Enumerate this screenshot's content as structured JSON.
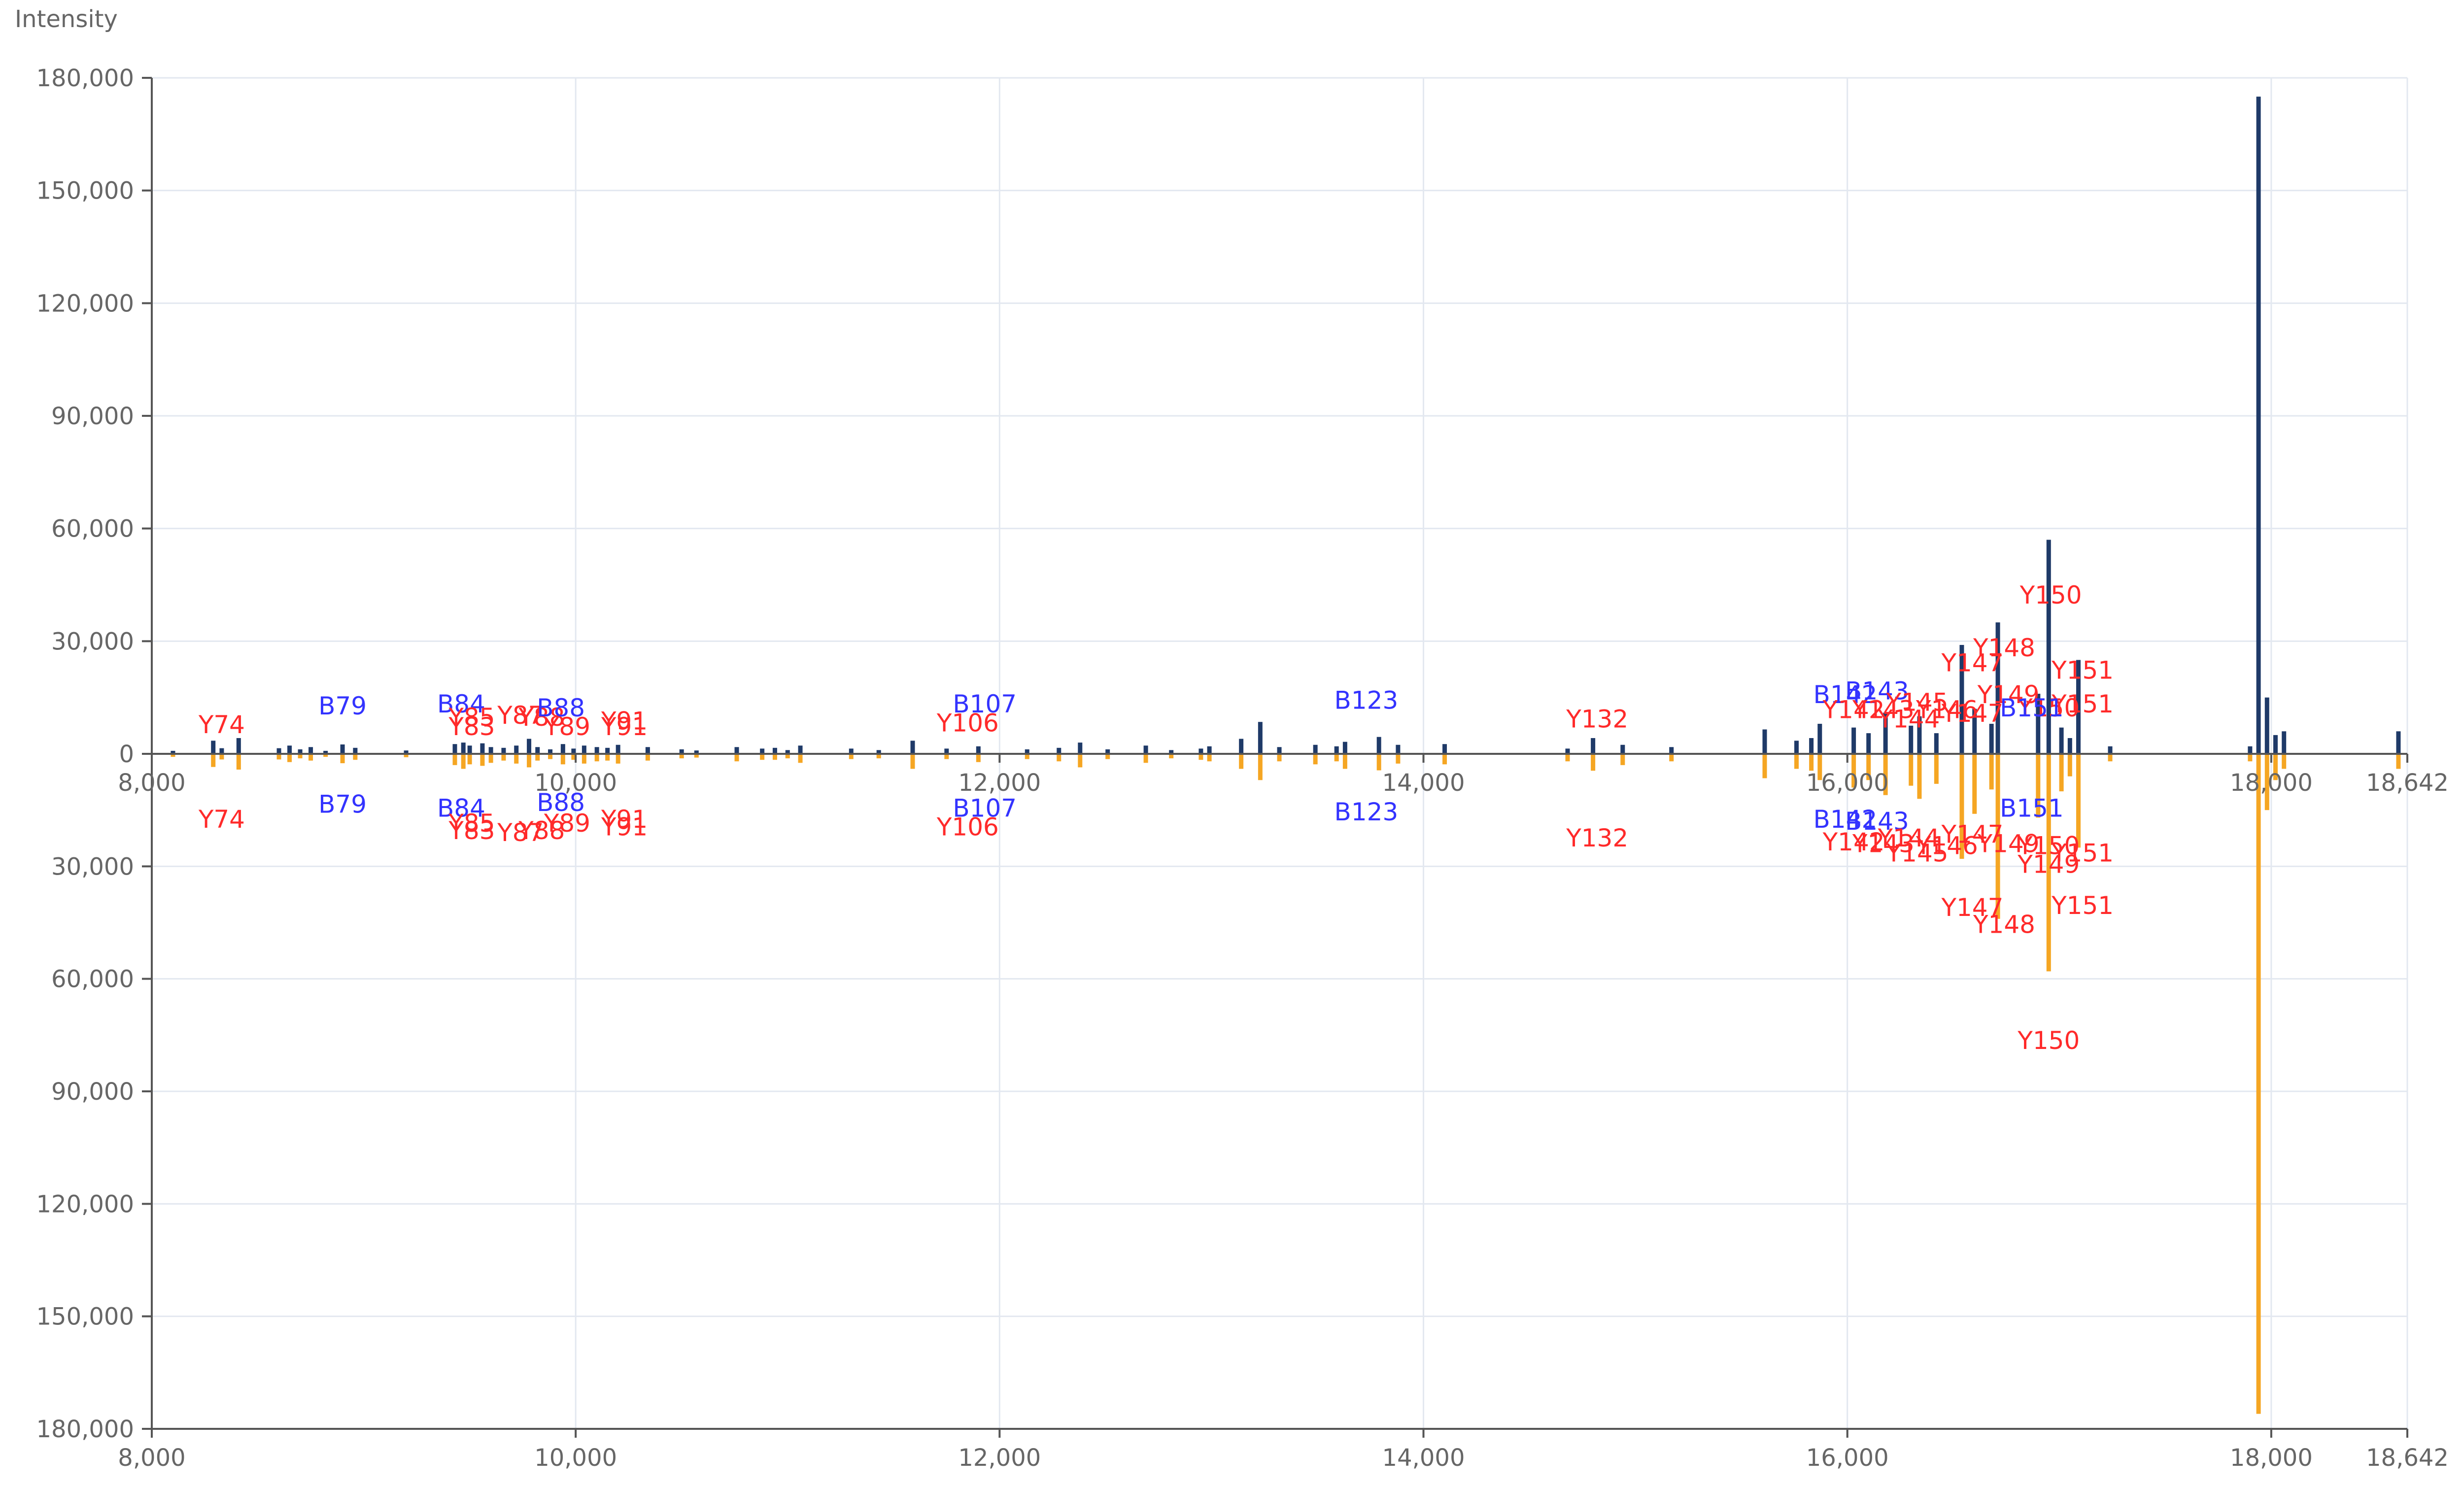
{
  "chart_data": {
    "type": "bar",
    "title": "",
    "xlabel": "",
    "ylabel": "Intensity",
    "xlim": [
      8000,
      18642
    ],
    "ylim_top": [
      0,
      180000
    ],
    "ylim_bottom": [
      0,
      180000
    ],
    "grid": true,
    "legend": "none",
    "x_ticks": [
      {
        "value": 8000,
        "label": "8,000"
      },
      {
        "value": 10000,
        "label": "10,000"
      },
      {
        "value": 12000,
        "label": "12,000"
      },
      {
        "value": 14000,
        "label": "14,000"
      },
      {
        "value": 16000,
        "label": "16,000"
      },
      {
        "value": 18000,
        "label": "18,000"
      },
      {
        "value": 18642,
        "label": "18,642"
      }
    ],
    "y_ticks": [
      {
        "value": 0,
        "label": "0"
      },
      {
        "value": 30000,
        "label": "30,000"
      },
      {
        "value": 60000,
        "label": "60,000"
      },
      {
        "value": 90000,
        "label": "90,000"
      },
      {
        "value": 120000,
        "label": "120,000"
      },
      {
        "value": 150000,
        "label": "150,000"
      },
      {
        "value": 180000,
        "label": "180,000"
      }
    ],
    "colors": {
      "top_series": "#1f3a68",
      "bottom_series": "#f5a623",
      "b_label": "#3333ff",
      "y_label": "#ff2a2a",
      "axis": "#555555",
      "grid": "#e3e8f0",
      "tick_text": "#666666"
    },
    "series": [
      {
        "position": "top",
        "x": [
          8100,
          8290,
          8330,
          8410,
          8600,
          8650,
          8700,
          8750,
          8820,
          8900,
          8960,
          9200,
          9430,
          9470,
          9500,
          9560,
          9600,
          9660,
          9720,
          9780,
          9820,
          9880,
          9940,
          9990,
          10040,
          10100,
          10150,
          10200,
          10340,
          10500,
          10570,
          10760,
          10880,
          10940,
          11000,
          11060,
          11300,
          11430,
          11590,
          11750,
          11900,
          12130,
          12280,
          12380,
          12510,
          12690,
          12810,
          12950,
          12990,
          13140,
          13230,
          13320,
          13490,
          13590,
          13630,
          13790,
          13880,
          14100,
          14680,
          14800,
          14940,
          15170,
          15610,
          15760,
          15830,
          15870,
          16030,
          16100,
          16180,
          16300,
          16340,
          16420,
          16540,
          16600,
          16680,
          16710,
          16900,
          16950,
          17010,
          17050,
          17090,
          17240,
          17900,
          17940,
          17980,
          18020,
          18060,
          18600
        ],
        "y": [
          800,
          3500,
          1500,
          4200,
          1500,
          2200,
          1200,
          1800,
          800,
          2500,
          1600,
          900,
          2600,
          3000,
          2200,
          2800,
          1800,
          1600,
          2200,
          4000,
          1800,
          1200,
          2600,
          1400,
          2200,
          1800,
          1600,
          2400,
          1800,
          1200,
          900,
          1800,
          1400,
          1600,
          1000,
          2200,
          1400,
          1000,
          3500,
          1400,
          2000,
          1200,
          1600,
          3000,
          1200,
          2200,
          1000,
          1400,
          2000,
          4000,
          8500,
          1800,
          2400,
          2000,
          3200,
          4500,
          2400,
          2600,
          1400,
          4200,
          2400,
          1800,
          6500,
          3500,
          4200,
          8000,
          7000,
          5500,
          11000,
          7500,
          10000,
          5500,
          29000,
          12000,
          8000,
          35000,
          16000,
          57000,
          7000,
          4200,
          25000,
          2000,
          2000,
          175000,
          15000,
          5000,
          6000,
          6000
        ]
      },
      {
        "position": "bottom",
        "x": [
          8100,
          8290,
          8330,
          8410,
          8600,
          8650,
          8700,
          8750,
          8820,
          8900,
          8960,
          9200,
          9430,
          9470,
          9500,
          9560,
          9600,
          9660,
          9720,
          9780,
          9820,
          9880,
          9940,
          9990,
          10040,
          10100,
          10150,
          10200,
          10340,
          10500,
          10570,
          10760,
          10880,
          10940,
          11000,
          11060,
          11300,
          11430,
          11590,
          11750,
          11900,
          12130,
          12280,
          12380,
          12510,
          12690,
          12810,
          12950,
          12990,
          13140,
          13230,
          13320,
          13490,
          13590,
          13630,
          13790,
          13880,
          14100,
          14680,
          14800,
          14940,
          15170,
          15610,
          15760,
          15830,
          15870,
          16030,
          16100,
          16180,
          16300,
          16340,
          16420,
          16540,
          16600,
          16680,
          16710,
          16900,
          16950,
          17010,
          17050,
          17090,
          17240,
          17900,
          17940,
          17980,
          18020,
          18060,
          18600
        ],
        "y": [
          800,
          3500,
          1500,
          4200,
          1500,
          2200,
          1200,
          1800,
          800,
          2500,
          1600,
          900,
          3000,
          4000,
          2800,
          3200,
          2400,
          1800,
          2600,
          3600,
          1800,
          1400,
          2800,
          1600,
          2600,
          2000,
          1800,
          2600,
          1800,
          1200,
          1000,
          2000,
          1600,
          1600,
          1200,
          2400,
          1400,
          1200,
          4000,
          1400,
          2200,
          1400,
          2000,
          3600,
          1400,
          2400,
          1200,
          1600,
          2000,
          4000,
          7000,
          2000,
          2800,
          2000,
          4000,
          4400,
          2600,
          2800,
          2000,
          4500,
          3000,
          2000,
          6500,
          4000,
          4500,
          7000,
          9000,
          7000,
          11000,
          8500,
          12000,
          8000,
          28000,
          16000,
          9500,
          44000,
          17000,
          58000,
          10000,
          6000,
          25000,
          2000,
          2000,
          176000,
          15000,
          7000,
          4000,
          4000
        ]
      }
    ],
    "annotations": [
      {
        "text": "Y74",
        "x": 8330,
        "y": 5500,
        "position": "top",
        "type": "Y"
      },
      {
        "text": "B79",
        "x": 8900,
        "y": 10500,
        "position": "top",
        "type": "B"
      },
      {
        "text": "B84",
        "x": 9460,
        "y": 11000,
        "position": "top",
        "type": "B"
      },
      {
        "text": "Y85",
        "x": 9510,
        "y": 7500,
        "position": "top",
        "type": "Y"
      },
      {
        "text": "Y83",
        "x": 9510,
        "y": 5000,
        "position": "top",
        "type": "Y"
      },
      {
        "text": "Y87",
        "x": 9740,
        "y": 8000,
        "position": "top",
        "type": "Y"
      },
      {
        "text": "Y88",
        "x": 9840,
        "y": 7500,
        "position": "top",
        "type": "Y"
      },
      {
        "text": "B88",
        "x": 9930,
        "y": 10000,
        "position": "top",
        "type": "B"
      },
      {
        "text": "Y89",
        "x": 9960,
        "y": 5000,
        "position": "top",
        "type": "Y"
      },
      {
        "text": "Y91",
        "x": 10230,
        "y": 5000,
        "position": "top",
        "type": "Y"
      },
      {
        "text": "Y91",
        "x": 10230,
        "y": 6500,
        "position": "top",
        "type": "Y"
      },
      {
        "text": "B107",
        "x": 11930,
        "y": 11000,
        "position": "top",
        "type": "B"
      },
      {
        "text": "Y106",
        "x": 11850,
        "y": 6000,
        "position": "top",
        "type": "Y"
      },
      {
        "text": "B123",
        "x": 13730,
        "y": 12000,
        "position": "top",
        "type": "B"
      },
      {
        "text": "Y132",
        "x": 14820,
        "y": 7000,
        "position": "top",
        "type": "Y"
      },
      {
        "text": "B142",
        "x": 15990,
        "y": 13500,
        "position": "top",
        "type": "B"
      },
      {
        "text": "B143",
        "x": 16140,
        "y": 14500,
        "position": "top",
        "type": "B"
      },
      {
        "text": "Y142",
        "x": 16030,
        "y": 9500,
        "position": "top",
        "type": "Y"
      },
      {
        "text": "Y143",
        "x": 16170,
        "y": 9500,
        "position": "top",
        "type": "Y"
      },
      {
        "text": "Y144",
        "x": 16290,
        "y": 7000,
        "position": "top",
        "type": "Y"
      },
      {
        "text": "Y145",
        "x": 16330,
        "y": 11500,
        "position": "top",
        "type": "Y"
      },
      {
        "text": "Y146",
        "x": 16470,
        "y": 9500,
        "position": "top",
        "type": "Y"
      },
      {
        "text": "Y147",
        "x": 16590,
        "y": 22000,
        "position": "top",
        "type": "Y"
      },
      {
        "text": "Y147",
        "x": 16590,
        "y": 8500,
        "position": "top",
        "type": "Y"
      },
      {
        "text": "Y148",
        "x": 16740,
        "y": 26000,
        "position": "top",
        "type": "Y"
      },
      {
        "text": "Y149",
        "x": 16760,
        "y": 13500,
        "position": "top",
        "type": "Y"
      },
      {
        "text": "Y150",
        "x": 16960,
        "y": 40000,
        "position": "top",
        "type": "Y"
      },
      {
        "text": "Y150",
        "x": 16950,
        "y": 10000,
        "position": "top",
        "type": "Y"
      },
      {
        "text": "Y151",
        "x": 17110,
        "y": 20000,
        "position": "top",
        "type": "Y"
      },
      {
        "text": "Y151",
        "x": 17110,
        "y": 11000,
        "position": "top",
        "type": "Y"
      },
      {
        "text": "B151",
        "x": 16870,
        "y": 10000,
        "position": "top",
        "type": "B"
      },
      {
        "text": "Y74",
        "x": 8330,
        "y": 15000,
        "position": "bottom",
        "type": "Y"
      },
      {
        "text": "B79",
        "x": 8900,
        "y": 11000,
        "position": "bottom",
        "type": "B"
      },
      {
        "text": "B84",
        "x": 9460,
        "y": 12000,
        "position": "bottom",
        "type": "B"
      },
      {
        "text": "Y85",
        "x": 9510,
        "y": 16000,
        "position": "bottom",
        "type": "Y"
      },
      {
        "text": "Y83",
        "x": 9510,
        "y": 18000,
        "position": "bottom",
        "type": "Y"
      },
      {
        "text": "Y87",
        "x": 9740,
        "y": 18500,
        "position": "bottom",
        "type": "Y"
      },
      {
        "text": "Y88",
        "x": 9840,
        "y": 18000,
        "position": "bottom",
        "type": "Y"
      },
      {
        "text": "B88",
        "x": 9930,
        "y": 10500,
        "position": "bottom",
        "type": "B"
      },
      {
        "text": "Y89",
        "x": 9960,
        "y": 16000,
        "position": "bottom",
        "type": "Y"
      },
      {
        "text": "Y91",
        "x": 10230,
        "y": 15000,
        "position": "bottom",
        "type": "Y"
      },
      {
        "text": "Y91",
        "x": 10230,
        "y": 17000,
        "position": "bottom",
        "type": "Y"
      },
      {
        "text": "B107",
        "x": 11930,
        "y": 12000,
        "position": "bottom",
        "type": "B"
      },
      {
        "text": "Y106",
        "x": 11850,
        "y": 17000,
        "position": "bottom",
        "type": "Y"
      },
      {
        "text": "B123",
        "x": 13730,
        "y": 13000,
        "position": "bottom",
        "type": "B"
      },
      {
        "text": "Y132",
        "x": 14820,
        "y": 20000,
        "position": "bottom",
        "type": "Y"
      },
      {
        "text": "B142",
        "x": 15990,
        "y": 15000,
        "position": "bottom",
        "type": "B"
      },
      {
        "text": "B143",
        "x": 16140,
        "y": 15500,
        "position": "bottom",
        "type": "B"
      },
      {
        "text": "Y142",
        "x": 16030,
        "y": 21000,
        "position": "bottom",
        "type": "Y"
      },
      {
        "text": "Y143",
        "x": 16170,
        "y": 21500,
        "position": "bottom",
        "type": "Y"
      },
      {
        "text": "Y144",
        "x": 16290,
        "y": 20000,
        "position": "bottom",
        "type": "Y"
      },
      {
        "text": "Y145",
        "x": 16330,
        "y": 24000,
        "position": "bottom",
        "type": "Y"
      },
      {
        "text": "Y146",
        "x": 16470,
        "y": 22000,
        "position": "bottom",
        "type": "Y"
      },
      {
        "text": "Y147",
        "x": 16590,
        "y": 19000,
        "position": "bottom",
        "type": "Y"
      },
      {
        "text": "Y147",
        "x": 16590,
        "y": 38500,
        "position": "bottom",
        "type": "Y"
      },
      {
        "text": "Y148",
        "x": 16740,
        "y": 43000,
        "position": "bottom",
        "type": "Y"
      },
      {
        "text": "Y149",
        "x": 16760,
        "y": 21500,
        "position": "bottom",
        "type": "Y"
      },
      {
        "text": "Y149",
        "x": 16950,
        "y": 27000,
        "position": "bottom",
        "type": "Y"
      },
      {
        "text": "Y150",
        "x": 16950,
        "y": 22000,
        "position": "bottom",
        "type": "Y"
      },
      {
        "text": "Y150",
        "x": 16950,
        "y": 74000,
        "position": "bottom",
        "type": "Y"
      },
      {
        "text": "Y151",
        "x": 17110,
        "y": 24000,
        "position": "bottom",
        "type": "Y"
      },
      {
        "text": "Y151",
        "x": 17110,
        "y": 38000,
        "position": "bottom",
        "type": "Y"
      },
      {
        "text": "B151",
        "x": 16870,
        "y": 12000,
        "position": "bottom",
        "type": "B"
      }
    ]
  }
}
